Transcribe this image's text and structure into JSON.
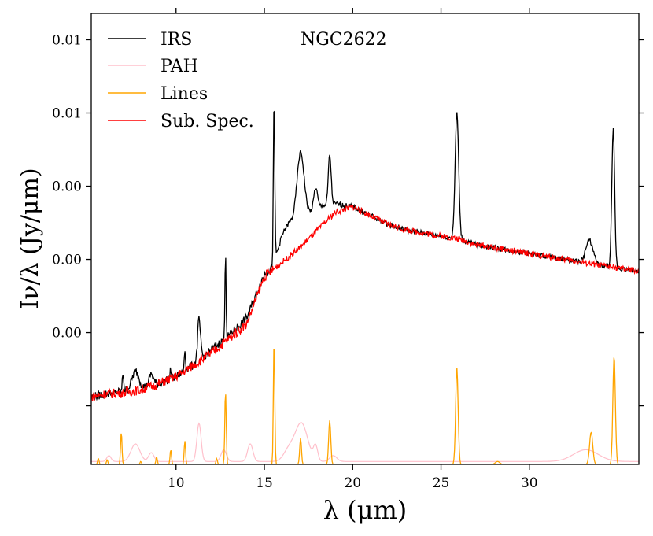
{
  "chart_data": {
    "type": "line",
    "title": "NGC2622",
    "xlabel": "λ (μm)",
    "ylabel": "Iν/λ (Jy/μm)",
    "xlim": [
      5.2,
      36.2
    ],
    "ylim": [
      -0.002,
      0.0134
    ],
    "x_ticks": [
      10,
      15,
      20,
      25,
      30
    ],
    "x_tick_labels": [
      "10",
      "15",
      "20",
      "25",
      "30"
    ],
    "y_ticks": [
      0.0,
      0.0025,
      0.005,
      0.0075,
      0.01,
      0.0125
    ],
    "y_tick_labels": [
      "",
      "0.00",
      "0.00",
      "0.00",
      "0.01",
      "0.01"
    ],
    "legend": {
      "position": "top-left",
      "entries": [
        {
          "label": "IRS",
          "color": "#000000"
        },
        {
          "label": "PAH",
          "color": "#ffc0cb"
        },
        {
          "label": "Lines",
          "color": "#ffa500"
        },
        {
          "label": "Sub. Spec.",
          "color": "#ff0000"
        }
      ]
    },
    "series": [
      {
        "name": "IRS",
        "color": "#000000",
        "baseline": [
          [
            5.2,
            0.0003
          ],
          [
            6,
            0.0004
          ],
          [
            7,
            0.0005
          ],
          [
            8,
            0.0006
          ],
          [
            9,
            0.00075
          ],
          [
            10,
            0.001
          ],
          [
            11,
            0.0014
          ],
          [
            12,
            0.0019
          ],
          [
            13,
            0.0024
          ],
          [
            14,
            0.003
          ],
          [
            15,
            0.0045
          ],
          [
            15.4,
            0.0047
          ],
          [
            16,
            0.0057
          ],
          [
            17,
            0.0063
          ],
          [
            18,
            0.0068
          ],
          [
            19,
            0.0069
          ],
          [
            20,
            0.0068
          ],
          [
            21,
            0.0065
          ],
          [
            22,
            0.0062
          ],
          [
            23,
            0.006
          ],
          [
            24,
            0.0059
          ],
          [
            25,
            0.0058
          ],
          [
            26,
            0.0057
          ],
          [
            27,
            0.0055
          ],
          [
            28,
            0.0054
          ],
          [
            29,
            0.0053
          ],
          [
            30,
            0.0052
          ],
          [
            31,
            0.0051
          ],
          [
            32,
            0.005
          ],
          [
            33,
            0.0049
          ],
          [
            34,
            0.0048
          ],
          [
            35,
            0.0047
          ],
          [
            36.2,
            0.0046
          ]
        ],
        "peaks": [
          [
            7.0,
            0.0006,
            0.04
          ],
          [
            7.7,
            0.0006,
            0.2
          ],
          [
            8.6,
            0.0004,
            0.12
          ],
          [
            9.7,
            0.0003,
            0.04
          ],
          [
            10.5,
            0.0007,
            0.04
          ],
          [
            11.3,
            0.0014,
            0.08
          ],
          [
            12.8,
            0.0031,
            0.03
          ],
          [
            15.55,
            0.0055,
            0.04
          ],
          [
            16.4,
            0.0003,
            0.3
          ],
          [
            17.05,
            0.0023,
            0.2
          ],
          [
            17.9,
            0.0007,
            0.1
          ],
          [
            18.7,
            0.0017,
            0.08
          ],
          [
            25.9,
            0.0043,
            0.1
          ],
          [
            33.4,
            0.0008,
            0.2
          ],
          [
            34.75,
            0.0047,
            0.08
          ]
        ]
      },
      {
        "name": "Sub. Spec.",
        "color": "#ff0000",
        "baseline": [
          [
            5.2,
            0.0003
          ],
          [
            6,
            0.0004
          ],
          [
            7,
            0.00045
          ],
          [
            8,
            0.00055
          ],
          [
            9,
            0.00075
          ],
          [
            10,
            0.001
          ],
          [
            11,
            0.0014
          ],
          [
            12,
            0.0018
          ],
          [
            13,
            0.0023
          ],
          [
            14,
            0.0028
          ],
          [
            15,
            0.0044
          ],
          [
            16,
            0.0049
          ],
          [
            17,
            0.0054
          ],
          [
            18,
            0.006
          ],
          [
            19,
            0.0066
          ],
          [
            20,
            0.0068
          ],
          [
            21,
            0.0065
          ],
          [
            22,
            0.0062
          ],
          [
            23,
            0.006
          ],
          [
            24,
            0.0059
          ],
          [
            25,
            0.0058
          ],
          [
            26,
            0.0057
          ],
          [
            27,
            0.0055
          ],
          [
            28,
            0.0054
          ],
          [
            29,
            0.0053
          ],
          [
            30,
            0.0052
          ],
          [
            31,
            0.0051
          ],
          [
            32,
            0.005
          ],
          [
            33,
            0.0049
          ],
          [
            34,
            0.0048
          ],
          [
            35,
            0.0047
          ],
          [
            36.2,
            0.0046
          ]
        ],
        "peaks": []
      },
      {
        "name": "PAH",
        "color": "#ffc0cb",
        "baseline": [
          [
            5.2,
            -0.0019
          ],
          [
            36.2,
            -0.0019
          ]
        ],
        "peaks": [
          [
            6.2,
            0.0002,
            0.12
          ],
          [
            7.7,
            0.0006,
            0.25
          ],
          [
            8.6,
            0.0003,
            0.15
          ],
          [
            11.3,
            0.0013,
            0.12
          ],
          [
            12.7,
            0.0004,
            0.15
          ],
          [
            14.2,
            0.0006,
            0.15
          ],
          [
            16.4,
            0.0004,
            0.3
          ],
          [
            17.1,
            0.0013,
            0.35
          ],
          [
            17.9,
            0.0005,
            0.12
          ],
          [
            18.9,
            0.0002,
            0.2
          ],
          [
            33.2,
            0.0004,
            0.7
          ]
        ]
      },
      {
        "name": "Lines",
        "color": "#ffa500",
        "baseline": [
          [
            5.2,
            -0.002
          ],
          [
            36.2,
            -0.002
          ]
        ],
        "peaks": [
          [
            5.6,
            0.0002,
            0.04
          ],
          [
            6.1,
            0.00015,
            0.04
          ],
          [
            6.9,
            0.0011,
            0.04
          ],
          [
            8.0,
            0.0001,
            0.04
          ],
          [
            8.9,
            0.00025,
            0.04
          ],
          [
            9.7,
            0.0005,
            0.04
          ],
          [
            10.5,
            0.0008,
            0.04
          ],
          [
            12.3,
            0.0002,
            0.04
          ],
          [
            12.8,
            0.0025,
            0.04
          ],
          [
            15.55,
            0.0043,
            0.04
          ],
          [
            17.05,
            0.0009,
            0.05
          ],
          [
            18.7,
            0.0015,
            0.06
          ],
          [
            25.9,
            0.0033,
            0.07
          ],
          [
            28.2,
            0.0001,
            0.12
          ],
          [
            33.5,
            0.0011,
            0.09
          ],
          [
            34.8,
            0.0037,
            0.07
          ]
        ]
      }
    ]
  }
}
